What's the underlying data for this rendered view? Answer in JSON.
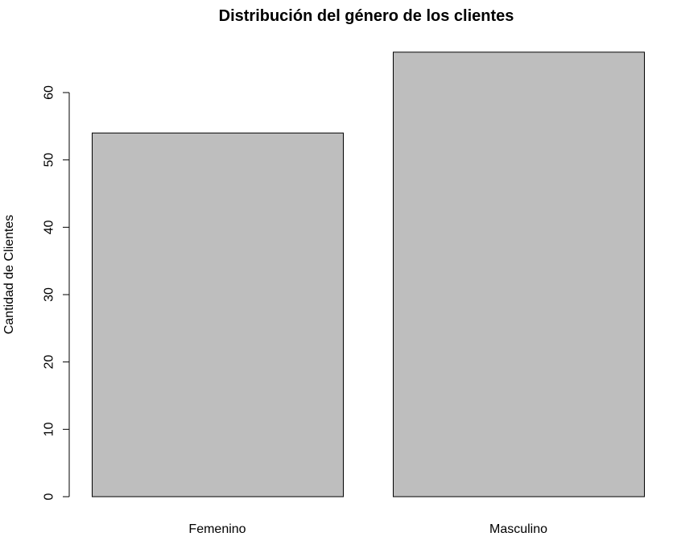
{
  "chart_data": {
    "type": "bar",
    "title": "Distribución del género de los clientes",
    "xlabel": "",
    "ylabel": "Cantidad de Clientes",
    "categories": [
      "Femenino",
      "Masculino"
    ],
    "values": [
      54,
      66
    ],
    "yticks": [
      0,
      10,
      20,
      30,
      40,
      50,
      60
    ],
    "ylim": [
      0,
      66
    ],
    "grid": false,
    "legend": "none",
    "bar_color": "#bebebe",
    "bar_border_color": "#000000"
  }
}
